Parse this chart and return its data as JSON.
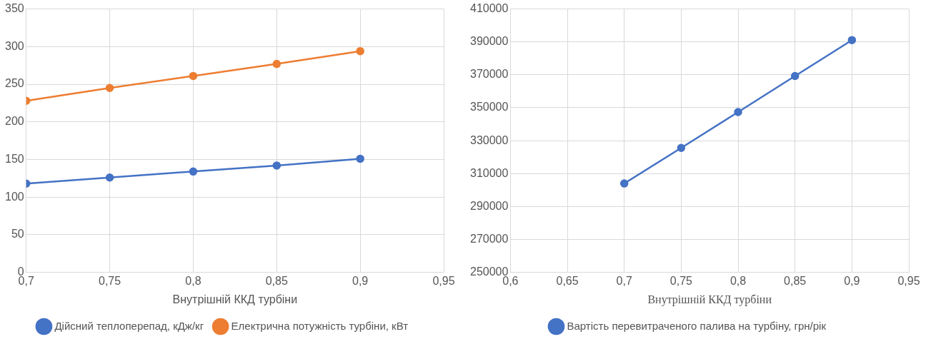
{
  "chart_data": [
    {
      "type": "line",
      "xlabel": "Внутрішній ККД турбіни",
      "x": [
        0.7,
        0.75,
        0.8,
        0.85,
        0.9
      ],
      "series": [
        {
          "name": "Дійсний теплоперепад, кДж/кг",
          "color": "#4472c4",
          "values": [
            118,
            126,
            134,
            142,
            151
          ]
        },
        {
          "name": "Електрична потужність турбіни, кВт",
          "color": "#ed7d31",
          "values": [
            228,
            245,
            261,
            277,
            294
          ]
        }
      ],
      "xlim": [
        0.7,
        0.95
      ],
      "xticks": [
        {
          "value": 0.7,
          "label": "0,7"
        },
        {
          "value": 0.75,
          "label": "0,75"
        },
        {
          "value": 0.8,
          "label": "0,8"
        },
        {
          "value": 0.85,
          "label": "0,85"
        },
        {
          "value": 0.9,
          "label": "0,9"
        },
        {
          "value": 0.95,
          "label": "0,95"
        }
      ],
      "ylim": [
        0,
        350
      ],
      "yticks": [
        0,
        50,
        100,
        150,
        200,
        250,
        300,
        350
      ],
      "grid": true,
      "legend": "bottom",
      "marker": "circle",
      "line_style": "solid"
    },
    {
      "type": "line",
      "xlabel": "Внутрішній ККД турбіни",
      "x": [
        0.7,
        0.75,
        0.8,
        0.85,
        0.9
      ],
      "series": [
        {
          "name": "Вартість перевитраченого палива на турбіну, грн/рік",
          "color": "#4472c4",
          "values": [
            304000,
            325600,
            347400,
            369300,
            391100
          ]
        }
      ],
      "xlim": [
        0.6,
        0.95
      ],
      "xticks": [
        {
          "value": 0.6,
          "label": "0,6"
        },
        {
          "value": 0.65,
          "label": "0,65"
        },
        {
          "value": 0.7,
          "label": "0,7"
        },
        {
          "value": 0.75,
          "label": "0,75"
        },
        {
          "value": 0.8,
          "label": "0,8"
        },
        {
          "value": 0.85,
          "label": "0,85"
        },
        {
          "value": 0.9,
          "label": "0,9"
        },
        {
          "value": 0.95,
          "label": "0,95"
        }
      ],
      "ylim": [
        250000,
        410000
      ],
      "yticks": [
        250000,
        270000,
        290000,
        310000,
        330000,
        350000,
        370000,
        390000,
        410000
      ],
      "grid": true,
      "legend": "bottom",
      "marker": "circle",
      "line_style": "solid"
    }
  ]
}
